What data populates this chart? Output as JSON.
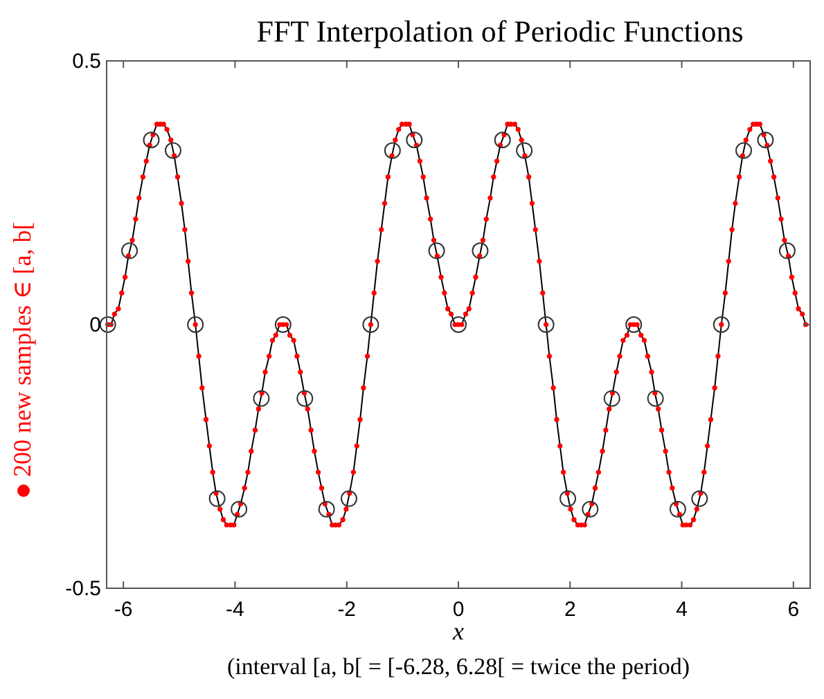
{
  "chart_data": {
    "type": "line",
    "title": "FFT Interpolation of Periodic Functions",
    "xlabel": "x",
    "annotations": [
      "(interval [a, b[ = [-6.28, 6.28[ = twice the period)"
    ],
    "xlim": [
      -6.3,
      6.3
    ],
    "ylim": [
      -0.5,
      0.5
    ],
    "xticks": [
      -6,
      -4,
      -2,
      0,
      2,
      4,
      6
    ],
    "yticks": [
      -0.5,
      0,
      0.5
    ],
    "grid": false,
    "legend": false,
    "x": [
      -6.28,
      -6.22,
      -6.16,
      -6.09,
      -6.03,
      -5.97,
      -5.91,
      -5.84,
      -5.78,
      -5.72,
      -5.65,
      -5.59,
      -5.53,
      -5.47,
      -5.4,
      -5.34,
      -5.28,
      -5.22,
      -5.15,
      -5.09,
      -5.03,
      -4.96,
      -4.9,
      -4.84,
      -4.78,
      -4.71,
      -4.65,
      -4.59,
      -4.52,
      -4.46,
      -4.4,
      -4.34,
      -4.27,
      -4.21,
      -4.15,
      -4.08,
      -4.02,
      -3.96,
      -3.9,
      -3.83,
      -3.77,
      -3.71,
      -3.64,
      -3.58,
      -3.52,
      -3.46,
      -3.39,
      -3.33,
      -3.27,
      -3.2,
      -3.14,
      -3.08,
      -3.02,
      -2.95,
      -2.89,
      -2.83,
      -2.76,
      -2.7,
      -2.64,
      -2.58,
      -2.51,
      -2.45,
      -2.39,
      -2.32,
      -2.26,
      -2.2,
      -2.14,
      -2.07,
      -2.01,
      -1.95,
      -1.88,
      -1.82,
      -1.76,
      -1.7,
      -1.63,
      -1.57,
      -1.51,
      -1.45,
      -1.38,
      -1.32,
      -1.26,
      -1.19,
      -1.13,
      -1.07,
      -1.01,
      -0.94,
      -0.88,
      -0.82,
      -0.75,
      -0.69,
      -0.63,
      -0.57,
      -0.5,
      -0.44,
      -0.38,
      -0.31,
      -0.25,
      -0.19,
      -0.13,
      -0.06,
      0,
      0.06,
      0.13,
      0.19,
      0.25,
      0.31,
      0.38,
      0.44,
      0.5,
      0.57,
      0.63,
      0.69,
      0.75,
      0.82,
      0.88,
      0.94,
      1.01,
      1.07,
      1.13,
      1.19,
      1.26,
      1.32,
      1.38,
      1.45,
      1.51,
      1.57,
      1.63,
      1.7,
      1.76,
      1.82,
      1.88,
      1.95,
      2.01,
      2.07,
      2.14,
      2.2,
      2.26,
      2.32,
      2.39,
      2.45,
      2.51,
      2.58,
      2.64,
      2.7,
      2.76,
      2.83,
      2.89,
      2.95,
      3.02,
      3.08,
      3.14,
      3.2,
      3.27,
      3.33,
      3.39,
      3.46,
      3.52,
      3.58,
      3.64,
      3.71,
      3.77,
      3.83,
      3.9,
      3.96,
      4.02,
      4.08,
      4.15,
      4.21,
      4.27,
      4.34,
      4.4,
      4.46,
      4.52,
      4.59,
      4.65,
      4.71,
      4.78,
      4.84,
      4.9,
      4.96,
      5.03,
      5.09,
      5.15,
      5.22,
      5.28,
      5.34,
      5.4,
      5.47,
      5.53,
      5.59,
      5.65,
      5.72,
      5.78,
      5.84,
      5.91,
      5.97,
      6.03,
      6.09,
      6.16,
      6.22
    ],
    "series": [
      {
        "color": "#000000",
        "marker": "none",
        "line_style": "solid",
        "values": [
          0,
          0,
          0.02,
          0.03,
          0.06,
          0.09,
          0.13,
          0.16,
          0.2,
          0.24,
          0.28,
          0.31,
          0.34,
          0.36,
          0.38,
          0.38,
          0.38,
          0.37,
          0.35,
          0.32,
          0.28,
          0.23,
          0.18,
          0.12,
          0.06,
          0,
          -0.06,
          -0.12,
          -0.18,
          -0.23,
          -0.28,
          -0.32,
          -0.35,
          -0.37,
          -0.38,
          -0.38,
          -0.38,
          -0.36,
          -0.34,
          -0.31,
          -0.28,
          -0.24,
          -0.2,
          -0.16,
          -0.13,
          -0.09,
          -0.06,
          -0.03,
          -0.02,
          0,
          0,
          0,
          -0.02,
          -0.03,
          -0.06,
          -0.09,
          -0.13,
          -0.16,
          -0.2,
          -0.24,
          -0.28,
          -0.31,
          -0.34,
          -0.36,
          -0.38,
          -0.38,
          -0.38,
          -0.37,
          -0.35,
          -0.32,
          -0.28,
          -0.23,
          -0.18,
          -0.12,
          -0.06,
          0,
          0.06,
          0.12,
          0.18,
          0.23,
          0.28,
          0.32,
          0.35,
          0.37,
          0.38,
          0.38,
          0.38,
          0.36,
          0.34,
          0.31,
          0.28,
          0.24,
          0.2,
          0.16,
          0.13,
          0.09,
          0.06,
          0.03,
          0.02,
          0,
          0,
          0,
          0.02,
          0.03,
          0.06,
          0.09,
          0.13,
          0.16,
          0.2,
          0.24,
          0.28,
          0.31,
          0.34,
          0.36,
          0.38,
          0.38,
          0.38,
          0.37,
          0.35,
          0.32,
          0.28,
          0.23,
          0.18,
          0.12,
          0.06,
          0,
          -0.06,
          -0.12,
          -0.18,
          -0.23,
          -0.28,
          -0.32,
          -0.35,
          -0.37,
          -0.38,
          -0.38,
          -0.38,
          -0.36,
          -0.34,
          -0.31,
          -0.28,
          -0.24,
          -0.2,
          -0.16,
          -0.13,
          -0.09,
          -0.06,
          -0.03,
          -0.02,
          0,
          0,
          0,
          -0.02,
          -0.03,
          -0.06,
          -0.09,
          -0.13,
          -0.16,
          -0.2,
          -0.24,
          -0.28,
          -0.31,
          -0.34,
          -0.36,
          -0.38,
          -0.38,
          -0.38,
          -0.37,
          -0.35,
          -0.32,
          -0.28,
          -0.23,
          -0.18,
          -0.12,
          -0.06,
          0,
          0.06,
          0.12,
          0.18,
          0.23,
          0.28,
          0.32,
          0.35,
          0.37,
          0.38,
          0.38,
          0.38,
          0.36,
          0.34,
          0.31,
          0.28,
          0.24,
          0.2,
          0.16,
          0.13,
          0.09,
          0.06,
          0.03,
          0.02,
          0
        ]
      },
      {
        "type": "scatter",
        "name": "200 new samples ∈ [a, b[",
        "color": "#ff0000",
        "marker": "circle",
        "values": [
          0,
          0,
          0.02,
          0.03,
          0.06,
          0.09,
          0.13,
          0.16,
          0.2,
          0.24,
          0.28,
          0.31,
          0.34,
          0.36,
          0.38,
          0.38,
          0.38,
          0.37,
          0.35,
          0.32,
          0.28,
          0.23,
          0.18,
          0.12,
          0.06,
          0,
          -0.06,
          -0.12,
          -0.18,
          -0.23,
          -0.28,
          -0.32,
          -0.35,
          -0.37,
          -0.38,
          -0.38,
          -0.38,
          -0.36,
          -0.34,
          -0.31,
          -0.28,
          -0.24,
          -0.2,
          -0.16,
          -0.13,
          -0.09,
          -0.06,
          -0.03,
          -0.02,
          0,
          0,
          0,
          -0.02,
          -0.03,
          -0.06,
          -0.09,
          -0.13,
          -0.16,
          -0.2,
          -0.24,
          -0.28,
          -0.31,
          -0.34,
          -0.36,
          -0.38,
          -0.38,
          -0.38,
          -0.37,
          -0.35,
          -0.32,
          -0.28,
          -0.23,
          -0.18,
          -0.12,
          -0.06,
          0,
          0.06,
          0.12,
          0.18,
          0.23,
          0.28,
          0.32,
          0.35,
          0.37,
          0.38,
          0.38,
          0.38,
          0.36,
          0.34,
          0.31,
          0.28,
          0.24,
          0.2,
          0.16,
          0.13,
          0.09,
          0.06,
          0.03,
          0.02,
          0,
          0,
          0,
          0.02,
          0.03,
          0.06,
          0.09,
          0.13,
          0.16,
          0.2,
          0.24,
          0.28,
          0.31,
          0.34,
          0.36,
          0.38,
          0.38,
          0.38,
          0.37,
          0.35,
          0.32,
          0.28,
          0.23,
          0.18,
          0.12,
          0.06,
          0,
          -0.06,
          -0.12,
          -0.18,
          -0.23,
          -0.28,
          -0.32,
          -0.35,
          -0.37,
          -0.38,
          -0.38,
          -0.38,
          -0.36,
          -0.34,
          -0.31,
          -0.28,
          -0.24,
          -0.2,
          -0.16,
          -0.13,
          -0.09,
          -0.06,
          -0.03,
          -0.02,
          0,
          0,
          0,
          -0.02,
          -0.03,
          -0.06,
          -0.09,
          -0.13,
          -0.16,
          -0.2,
          -0.24,
          -0.28,
          -0.31,
          -0.34,
          -0.36,
          -0.38,
          -0.38,
          -0.38,
          -0.37,
          -0.35,
          -0.32,
          -0.28,
          -0.23,
          -0.18,
          -0.12,
          -0.06,
          0,
          0.06,
          0.12,
          0.18,
          0.23,
          0.28,
          0.32,
          0.35,
          0.37,
          0.38,
          0.38,
          0.38,
          0.36,
          0.34,
          0.31,
          0.28,
          0.24,
          0.2,
          0.16,
          0.13,
          0.09,
          0.06,
          0.03,
          0.02,
          0
        ]
      },
      {
        "type": "scatter",
        "color": "#333333",
        "marker": "circle",
        "x": [
          -6.28,
          -5.89,
          -5.5,
          -5.11,
          -4.71,
          -4.32,
          -3.93,
          -3.53,
          -3.14,
          -2.75,
          -2.36,
          -1.96,
          -1.57,
          -1.18,
          -0.79,
          -0.39,
          0,
          0.39,
          0.79,
          1.18,
          1.57,
          1.96,
          2.36,
          2.75,
          3.14,
          3.53,
          3.93,
          4.32,
          4.71,
          5.11,
          5.5,
          5.89
        ],
        "values": [
          0,
          0.14,
          0.35,
          0.33,
          0,
          -0.33,
          -0.35,
          -0.14,
          0,
          -0.14,
          -0.35,
          -0.33,
          0,
          0.33,
          0.35,
          0.14,
          0,
          0.14,
          0.35,
          0.33,
          0,
          -0.33,
          -0.35,
          -0.14,
          0,
          -0.14,
          -0.35,
          -0.33,
          0,
          0.33,
          0.35,
          0.14
        ]
      }
    ]
  }
}
